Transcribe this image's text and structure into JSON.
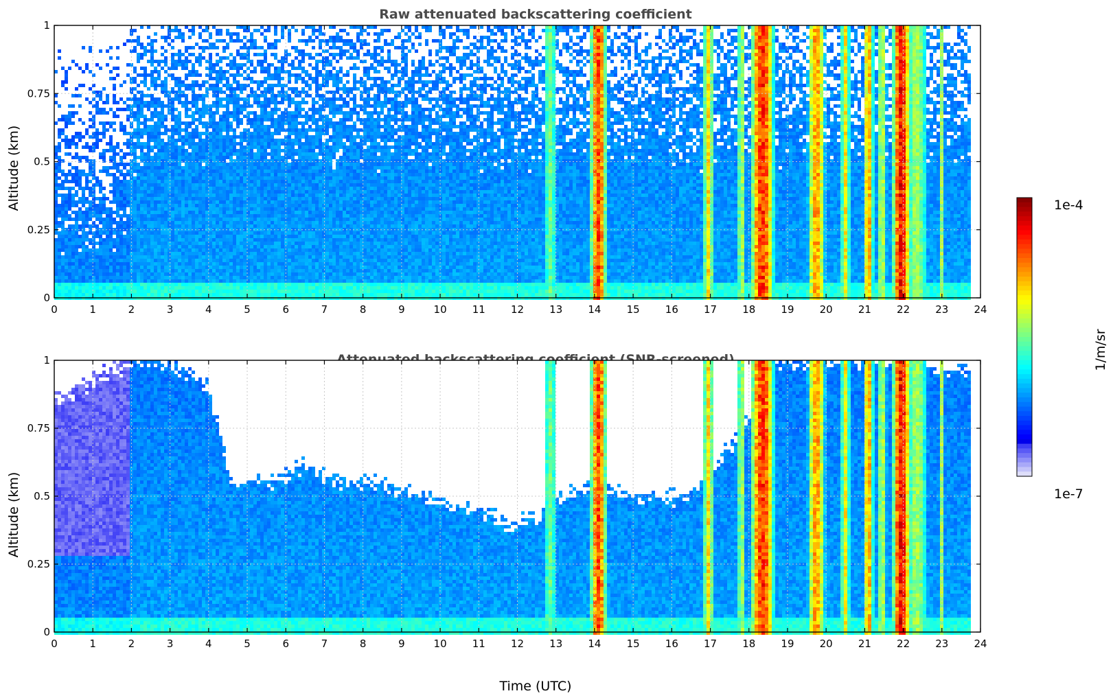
{
  "chart_data": [
    {
      "type": "heatmap",
      "title": "Raw attenuated backscattering coefficient",
      "xlabel": "",
      "ylabel": "Altitude (km)",
      "xlim": [
        0,
        24
      ],
      "ylim": [
        0,
        1
      ],
      "xticks": [
        "0",
        "1",
        "2",
        "3",
        "4",
        "5",
        "6",
        "7",
        "8",
        "9",
        "10",
        "11",
        "12",
        "13",
        "14",
        "15",
        "16",
        "17",
        "18",
        "19",
        "20",
        "21",
        "22",
        "23",
        "24"
      ],
      "yticks": [
        "0",
        "0.25",
        "0.5",
        "0.75",
        "1"
      ],
      "screened": false,
      "grid": true
    },
    {
      "type": "heatmap",
      "title": "Attenuated backscattering coefficient (SNR-screened)",
      "xlabel": "Time (UTC)",
      "ylabel": "Altitude (km)",
      "xlim": [
        0,
        24
      ],
      "ylim": [
        0,
        1
      ],
      "xticks": [
        "0",
        "1",
        "2",
        "3",
        "4",
        "5",
        "6",
        "7",
        "8",
        "9",
        "10",
        "11",
        "12",
        "13",
        "14",
        "15",
        "16",
        "17",
        "18",
        "19",
        "20",
        "21",
        "22",
        "23",
        "24"
      ],
      "yticks": [
        "0",
        "0.25",
        "0.5",
        "0.75",
        "1"
      ],
      "screened": true,
      "grid": true
    }
  ],
  "colorbar": {
    "label": "1/m/sr",
    "min_label": "1e-7",
    "max_label": "1e-4",
    "colormap": "jet-with-white-low-end",
    "scale": "log"
  },
  "features": {
    "data_end_time": 23.8,
    "cloud_bands": [
      {
        "t": 12.85,
        "w": 0.25,
        "level": 0.55
      },
      {
        "t": 14.1,
        "w": 0.28,
        "level": 0.9
      },
      {
        "t": 16.95,
        "w": 0.18,
        "level": 0.72
      },
      {
        "t": 17.8,
        "w": 0.12,
        "level": 0.65
      },
      {
        "t": 18.35,
        "w": 0.4,
        "level": 0.92
      },
      {
        "t": 19.75,
        "w": 0.3,
        "level": 0.8
      },
      {
        "t": 20.5,
        "w": 0.16,
        "level": 0.7
      },
      {
        "t": 21.1,
        "w": 0.18,
        "level": 0.78
      },
      {
        "t": 21.45,
        "w": 0.18,
        "level": 0.62
      },
      {
        "t": 21.95,
        "w": 0.3,
        "level": 0.97
      },
      {
        "t": 22.35,
        "w": 0.4,
        "level": 0.6
      },
      {
        "t": 23.0,
        "w": 0.1,
        "level": 0.6
      }
    ],
    "screened_boundary_altitude": [
      [
        0,
        0.85
      ],
      [
        1,
        0.92
      ],
      [
        2,
        1.0
      ],
      [
        3,
        1.0
      ],
      [
        4,
        0.9
      ],
      [
        4.6,
        0.55
      ],
      [
        5.5,
        0.55
      ],
      [
        6.5,
        0.62
      ],
      [
        7.5,
        0.55
      ],
      [
        8.5,
        0.55
      ],
      [
        10,
        0.48
      ],
      [
        11,
        0.45
      ],
      [
        11.8,
        0.4
      ],
      [
        12.5,
        0.42
      ],
      [
        13.2,
        0.5
      ],
      [
        14,
        0.55
      ],
      [
        15,
        0.5
      ],
      [
        16,
        0.5
      ],
      [
        16.5,
        0.5
      ],
      [
        17,
        0.6
      ],
      [
        17.8,
        0.72
      ],
      [
        18.5,
        1.0
      ],
      [
        19.5,
        1.0
      ],
      [
        20.5,
        1.0
      ],
      [
        21.5,
        1.0
      ],
      [
        23.8,
        0.95
      ]
    ]
  }
}
